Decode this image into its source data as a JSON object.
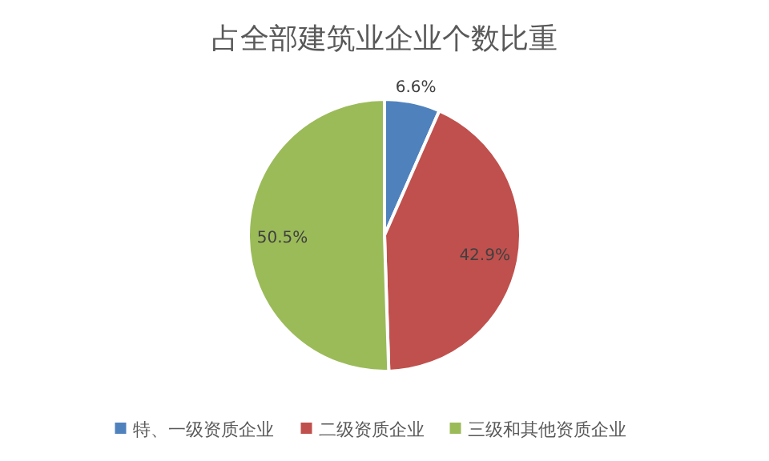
{
  "chart_data": {
    "type": "pie",
    "title": "占全部建筑业企业个数比重",
    "categories": [
      "特、一级资质企业",
      "二级资质企业",
      "三级和其他资质企业"
    ],
    "values": [
      6.6,
      42.9,
      50.5
    ],
    "colors": [
      "#4f81bd",
      "#c0504d",
      "#9bbb59"
    ],
    "value_labels": [
      "6.6%",
      "42.9%",
      "50.5%"
    ],
    "legend": "bottom"
  }
}
